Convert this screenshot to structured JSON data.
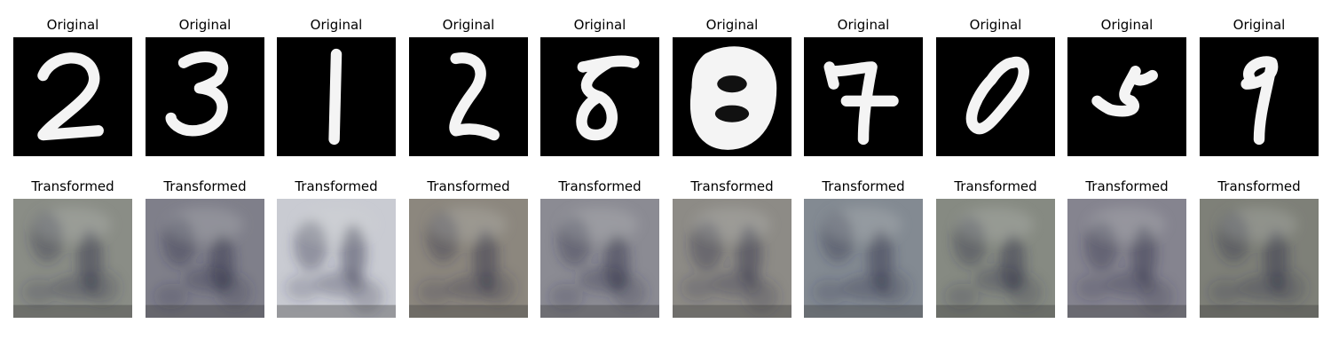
{
  "rows": [
    {
      "label": "Original",
      "kind": "original",
      "items": [
        {
          "digit": "2"
        },
        {
          "digit": "3"
        },
        {
          "digit": "1"
        },
        {
          "digit": "2"
        },
        {
          "digit": "8"
        },
        {
          "digit": "8"
        },
        {
          "digit": "7"
        },
        {
          "digit": "0"
        },
        {
          "digit": "5"
        },
        {
          "digit": "9"
        }
      ]
    },
    {
      "label": "Transformed",
      "kind": "transformed",
      "items": [
        {
          "tint": "#8a8d86"
        },
        {
          "tint": "#7f7f8a"
        },
        {
          "tint": "#c9cbd2"
        },
        {
          "tint": "#8c877e"
        },
        {
          "tint": "#8b8b93"
        },
        {
          "tint": "#8d8b86"
        },
        {
          "tint": "#838a92"
        },
        {
          "tint": "#868a82"
        },
        {
          "tint": "#85848f"
        },
        {
          "tint": "#7e8078"
        }
      ]
    }
  ]
}
